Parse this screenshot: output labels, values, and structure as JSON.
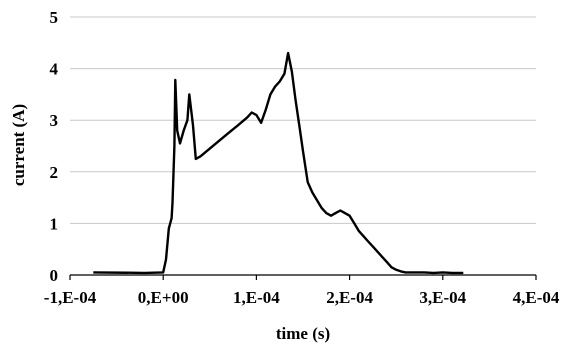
{
  "chart_data": {
    "type": "line",
    "title": "",
    "xlabel": "time (s)",
    "ylabel": "current (A)",
    "xlim": [
      -0.0001,
      0.0004
    ],
    "ylim": [
      0,
      5
    ],
    "grid": "horizontal",
    "x_ticks": [
      {
        "value": -0.0001,
        "label": "-1,E-04"
      },
      {
        "value": 0,
        "label": "0,E+00"
      },
      {
        "value": 0.0001,
        "label": "1,E-04"
      },
      {
        "value": 0.0002,
        "label": "2,E-04"
      },
      {
        "value": 0.0003,
        "label": "3,E-04"
      },
      {
        "value": 0.0004,
        "label": "4,E-04"
      }
    ],
    "y_ticks": [
      {
        "value": 0,
        "label": "0"
      },
      {
        "value": 1,
        "label": "1"
      },
      {
        "value": 2,
        "label": "2"
      },
      {
        "value": 3,
        "label": "3"
      },
      {
        "value": 4,
        "label": "4"
      },
      {
        "value": 5,
        "label": "5"
      }
    ],
    "series": [
      {
        "color": "#000000",
        "x": [
          -7.5e-05,
          -2e-05,
          0.0,
          3e-06,
          6e-06,
          9e-06,
          1e-05,
          1.2e-05,
          1.3e-05,
          1.5e-05,
          1.8e-05,
          2.2e-05,
          2.6e-05,
          2.8e-05,
          3.2e-05,
          3.5e-05,
          4e-05,
          5e-05,
          6e-05,
          7e-05,
          8e-05,
          9e-05,
          9.5e-05,
          0.0001,
          0.000105,
          0.00011,
          0.000115,
          0.00012,
          0.000125,
          0.00013,
          0.000134,
          0.000138,
          0.000142,
          0.000146,
          0.00015,
          0.000155,
          0.00016,
          0.000165,
          0.00017,
          0.000175,
          0.00018,
          0.000185,
          0.00019,
          0.000195,
          0.0002,
          0.000205,
          0.00021,
          0.000215,
          0.00022,
          0.000225,
          0.00023,
          0.000235,
          0.00024,
          0.000245,
          0.00025,
          0.000255,
          0.00026,
          0.00027,
          0.00028,
          0.00029,
          0.0003,
          0.00031,
          0.000322
        ],
        "y": [
          0.05,
          0.04,
          0.05,
          0.3,
          0.9,
          1.1,
          1.4,
          2.5,
          3.78,
          2.8,
          2.55,
          2.8,
          3.0,
          3.5,
          2.9,
          2.25,
          2.3,
          2.45,
          2.6,
          2.75,
          2.9,
          3.05,
          3.15,
          3.1,
          2.95,
          3.2,
          3.5,
          3.65,
          3.75,
          3.9,
          4.3,
          3.95,
          3.4,
          2.9,
          2.4,
          1.8,
          1.6,
          1.45,
          1.3,
          1.2,
          1.15,
          1.2,
          1.25,
          1.2,
          1.15,
          1.0,
          0.85,
          0.75,
          0.65,
          0.55,
          0.45,
          0.35,
          0.25,
          0.15,
          0.1,
          0.07,
          0.05,
          0.05,
          0.05,
          0.04,
          0.05,
          0.04,
          0.04
        ]
      }
    ]
  }
}
